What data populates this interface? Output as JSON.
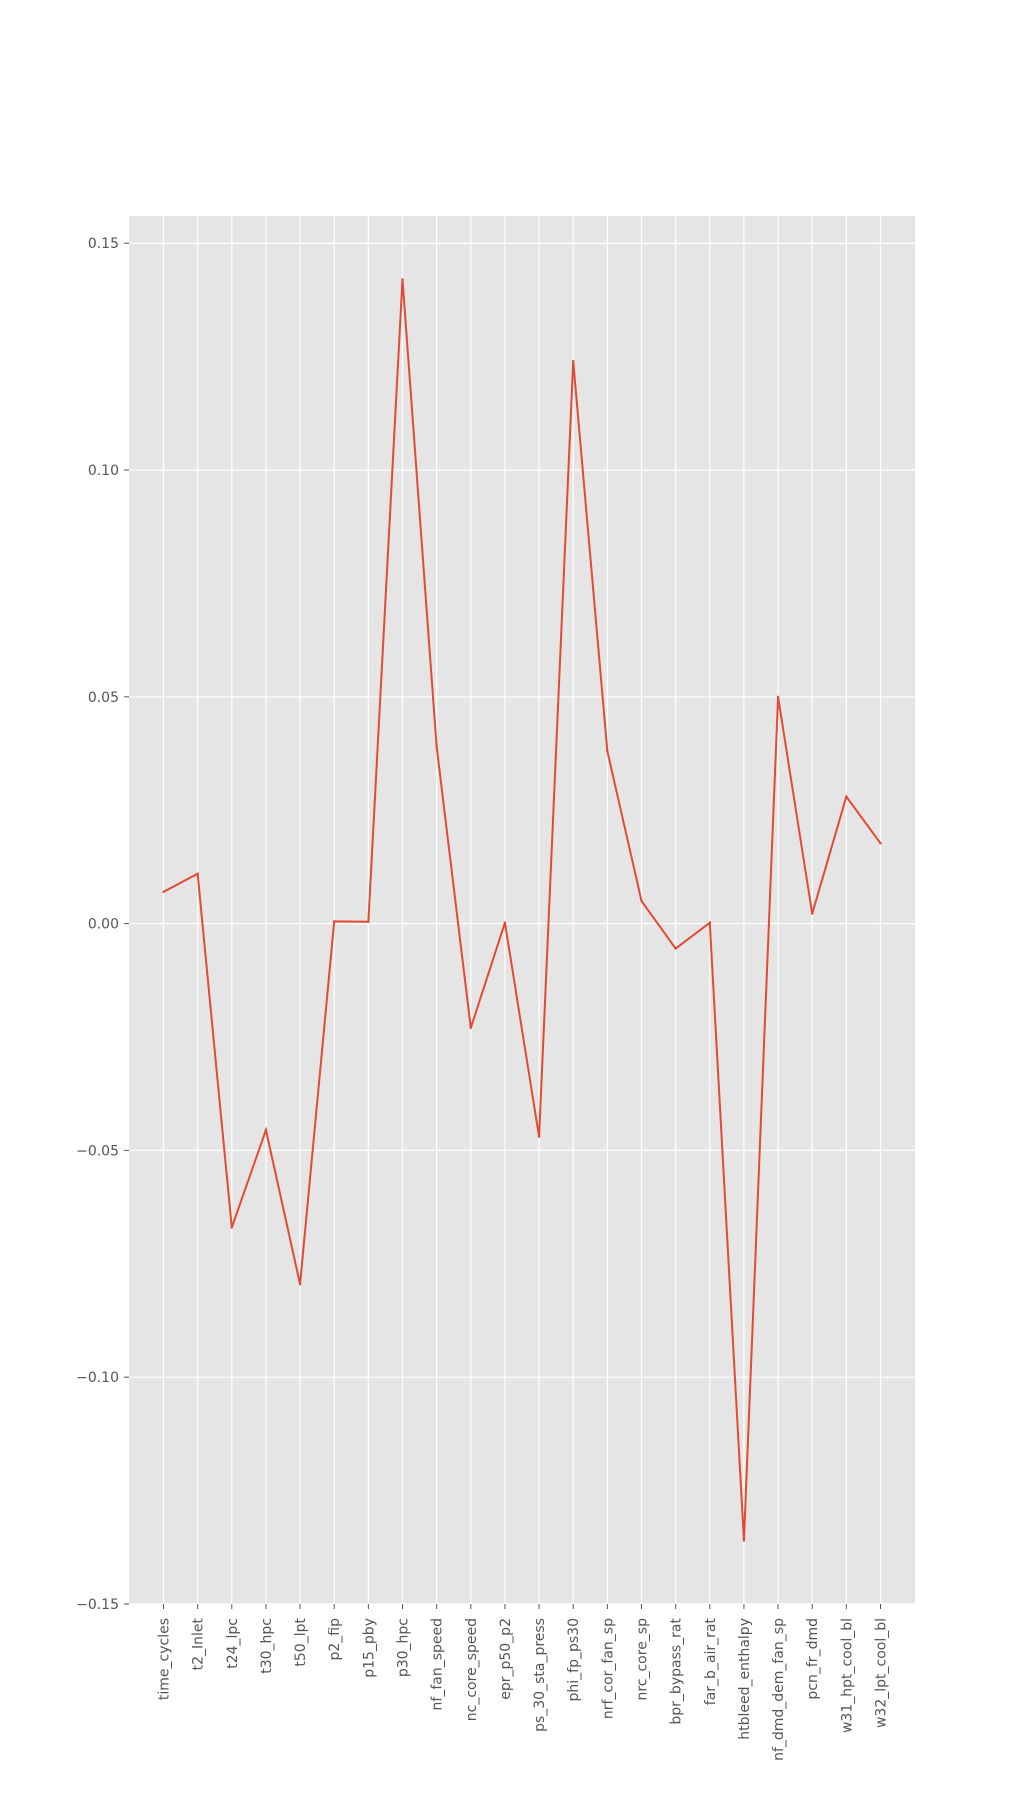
{
  "chart_data": {
    "type": "line",
    "title": "",
    "xlabel": "",
    "ylabel": "",
    "ylim": [
      -0.15,
      0.156
    ],
    "grid": true,
    "y_ticks": [
      {
        "value": 0.15,
        "label": "0.15"
      },
      {
        "value": 0.1,
        "label": "0.10"
      },
      {
        "value": 0.05,
        "label": "0.05"
      },
      {
        "value": 0.0,
        "label": "0.00"
      },
      {
        "value": -0.05,
        "label": "−0.05"
      },
      {
        "value": -0.1,
        "label": "−0.10"
      },
      {
        "value": -0.15,
        "label": "−0.15"
      }
    ],
    "categories": [
      "time_cycles",
      "t2_Inlet",
      "t24_lpc",
      "t30_hpc",
      "t50_lpt",
      "p2_fip",
      "p15_pby",
      "p30_hpc",
      "nf_fan_speed",
      "nc_core_speed",
      "epr_p50_p2",
      "ps_30_sta_press",
      "phi_fp_ps30",
      "nrf_cor_fan_sp",
      "nrc_core_sp",
      "bpr_bypass_rat",
      "far_b_air_rat",
      "htbleed_enthalpy",
      "nf_dmd_dem_fan_sp",
      "pcn_fr_dmd",
      "w31_hpt_cool_bl",
      "w32_lpt_cool_bl"
    ],
    "series": [
      {
        "color": "#E24A33",
        "values": [
          0.007,
          0.011,
          -0.067,
          -0.0455,
          -0.0795,
          0.0005,
          0.0004,
          0.142,
          0.039,
          -0.023,
          0.0002,
          -0.047,
          0.124,
          0.038,
          0.005,
          -0.0055,
          0.0002,
          -0.136,
          0.05,
          0.0022,
          0.028,
          0.0177
        ]
      }
    ],
    "colors": {
      "plot_background": "#E5E5E5",
      "grid": "#FFFFFF",
      "tick": "#555555"
    }
  }
}
